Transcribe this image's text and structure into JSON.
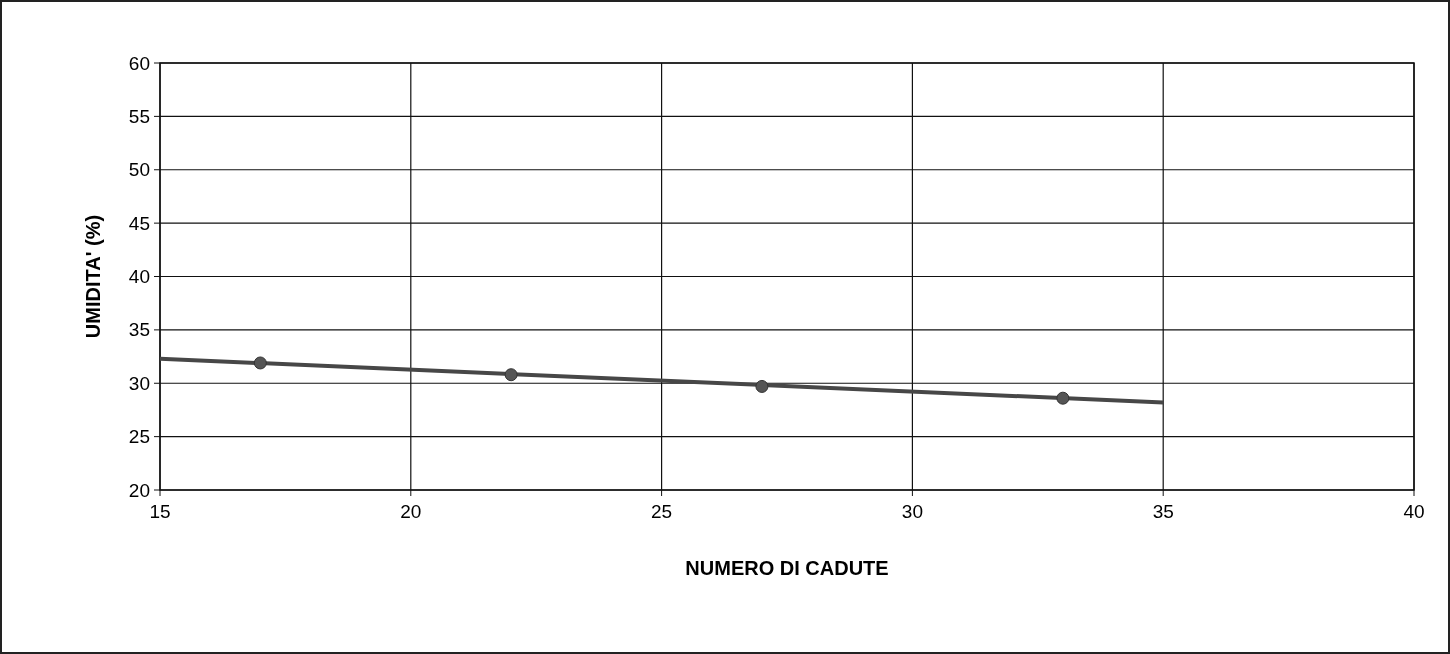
{
  "chart_data": {
    "type": "scatter",
    "xlabel": "NUMERO DI CADUTE",
    "ylabel": "UMIDITA' (%)",
    "xlim": [
      15,
      40
    ],
    "xticks": [
      15,
      20,
      25,
      30,
      35,
      40
    ],
    "ylim": [
      20,
      60
    ],
    "yticks": [
      20,
      25,
      30,
      35,
      40,
      45,
      50,
      55,
      60
    ],
    "grid": true,
    "series": [
      {
        "type": "line",
        "color": "#474747",
        "x": [
          15,
          35
        ],
        "values": [
          32.3,
          28.2
        ],
        "marker": "none",
        "line_style": "solid"
      },
      {
        "color": "#555555",
        "x": [
          17,
          22,
          27,
          33
        ],
        "values": [
          31.9,
          30.8,
          29.7,
          28.6
        ],
        "marker": "circle"
      }
    ]
  }
}
